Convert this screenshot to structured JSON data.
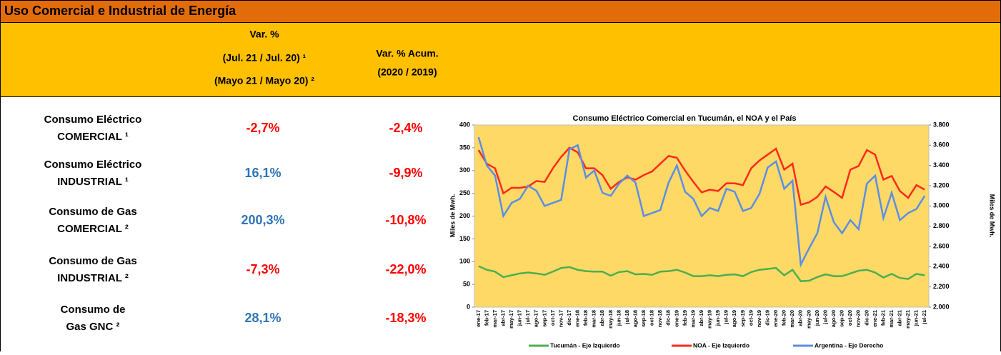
{
  "header": {
    "title": "Uso Comercial e Industrial de Energía",
    "col1": [
      "Var. %",
      "(Jul. 21 / Jul. 20) ¹",
      "(Mayo 21 / Mayo 20) ²"
    ],
    "col2": [
      "Var. % Acum.",
      "(2020 / 2019)"
    ]
  },
  "table": {
    "rows": [
      {
        "label": [
          "Consumo Eléctrico",
          "COMERCIAL ¹"
        ],
        "var": "-2,7%",
        "var_color": "#ff0000",
        "acum": "-2,4%",
        "acum_color": "#ff0000"
      },
      {
        "label": [
          "Consumo Eléctrico",
          "INDUSTRIAL ¹"
        ],
        "var": "16,1%",
        "var_color": "#2e75b6",
        "acum": "-9,9%",
        "acum_color": "#ff0000"
      },
      {
        "label": [
          "Consumo de Gas",
          "COMERCIAL ²"
        ],
        "var": "200,3%",
        "var_color": "#2e75b6",
        "acum": "-10,8%",
        "acum_color": "#ff0000"
      },
      {
        "label": [
          "Consumo de Gas",
          "INDUSTRIAL ²"
        ],
        "var": "-7,3%",
        "var_color": "#ff0000",
        "acum": "-22,0%",
        "acum_color": "#ff0000"
      },
      {
        "label": [
          "Consumo de",
          "Gas GNC ²"
        ],
        "var": "28,1%",
        "var_color": "#2e75b6",
        "acum": "-18,3%",
        "acum_color": "#ff0000"
      }
    ]
  },
  "chart_data": {
    "type": "line",
    "title": "Consumo Eléctrico Comercial en Tucumán, el NOA y el País",
    "ylabel": "Miles de Mwh.",
    "y2label": "Miles de Mwh.",
    "categories": [
      "ene-17",
      "feb-17",
      "mar-17",
      "abr-17",
      "may-17",
      "jun-17",
      "jul-17",
      "ago-17",
      "sep-17",
      "oct-17",
      "nov-17",
      "dic-17",
      "ene-18",
      "feb-18",
      "mar-18",
      "abr-18",
      "may-18",
      "jun-18",
      "jul-18",
      "ago-18",
      "sep-18",
      "oct-18",
      "nov-18",
      "dic-18",
      "ene-19",
      "feb-19",
      "mar-19",
      "abr-19",
      "may-19",
      "jun-19",
      "jul-19",
      "ago-19",
      "sep-19",
      "oct-19",
      "nov-19",
      "dic-19",
      "ene-20",
      "feb-20",
      "mar-20",
      "abr-20",
      "may-20",
      "jun-20",
      "jul-20",
      "ago-20",
      "sep-20",
      "oct-20",
      "nov-20",
      "dic-20",
      "ene-21",
      "feb-21",
      "mar-21",
      "abr-21",
      "may-21",
      "jun-21",
      "jul-21"
    ],
    "ylim": [
      0,
      400
    ],
    "yticks": [
      0,
      50,
      100,
      150,
      200,
      250,
      300,
      350,
      400
    ],
    "y2lim": [
      2000,
      3800
    ],
    "y2ticks": [
      {
        "value": 2000,
        "label": "2.000"
      },
      {
        "value": 2200,
        "label": "2.200"
      },
      {
        "value": 2400,
        "label": "2.400"
      },
      {
        "value": 2600,
        "label": "2.600"
      },
      {
        "value": 2800,
        "label": "2.800"
      },
      {
        "value": 3000,
        "label": "3.000"
      },
      {
        "value": 3200,
        "label": "3.200"
      },
      {
        "value": 3400,
        "label": "3.400"
      },
      {
        "value": 3600,
        "label": "3.600"
      },
      {
        "value": 3800,
        "label": "3.800"
      }
    ],
    "series": [
      {
        "name": "Tucumán - Eje Izquierdo",
        "color": "#4caf50",
        "values": [
          90,
          82,
          78,
          66,
          70,
          74,
          76,
          74,
          71,
          78,
          86,
          88,
          82,
          79,
          78,
          78,
          69,
          77,
          79,
          72,
          73,
          71,
          78,
          79,
          82,
          76,
          68,
          68,
          70,
          68,
          71,
          72,
          68,
          77,
          82,
          84,
          86,
          70,
          82,
          57,
          58,
          66,
          72,
          68,
          68,
          74,
          80,
          82,
          76,
          65,
          73,
          64,
          62,
          73,
          70
        ]
      },
      {
        "name": "NOA - Eje Izquierdo",
        "color": "#ff2a1a",
        "values": [
          345,
          315,
          305,
          250,
          262,
          262,
          265,
          277,
          275,
          305,
          330,
          350,
          340,
          305,
          305,
          290,
          260,
          275,
          285,
          280,
          290,
          298,
          315,
          332,
          328,
          300,
          275,
          252,
          258,
          255,
          272,
          272,
          268,
          305,
          322,
          335,
          348,
          302,
          315,
          225,
          230,
          242,
          265,
          253,
          240,
          302,
          310,
          345,
          335,
          280,
          288,
          255,
          240,
          268,
          258
        ]
      },
      {
        "name": "Argentina - Eje Derecho",
        "color": "#5b8ee6",
        "axis": "y2",
        "values": [
          3680,
          3400,
          3300,
          2900,
          3030,
          3070,
          3200,
          3150,
          3000,
          3030,
          3060,
          3560,
          3600,
          3280,
          3350,
          3130,
          3100,
          3220,
          3300,
          3230,
          2900,
          2930,
          2960,
          3230,
          3400,
          3140,
          3070,
          2900,
          2980,
          2950,
          3170,
          3140,
          2950,
          2980,
          3120,
          3380,
          3440,
          3170,
          3250,
          2420,
          2580,
          2730,
          3090,
          2840,
          2730,
          2860,
          2770,
          3220,
          3300,
          2880,
          3130,
          2860,
          2930,
          2970,
          3100
        ]
      }
    ]
  }
}
